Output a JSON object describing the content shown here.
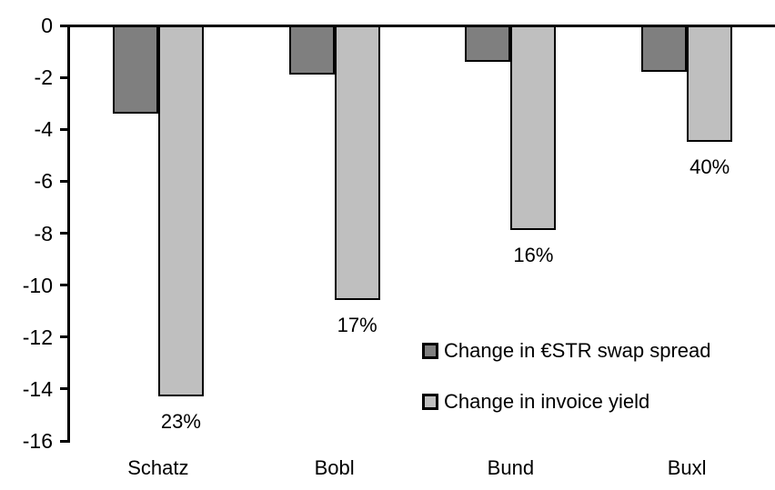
{
  "chart_data": {
    "type": "bar",
    "title": "",
    "xlabel": "",
    "ylabel": "",
    "categories": [
      "Schatz",
      "Bobl",
      "Bund",
      "Buxl"
    ],
    "series": [
      {
        "name": "Change in €STR swap spread",
        "color": "#7f7f7f",
        "values": [
          -3.3,
          -1.8,
          -1.3,
          -1.7
        ]
      },
      {
        "name": "Change in invoice yield",
        "color": "#bfbfbf",
        "values": [
          -14.2,
          -10.5,
          -7.8,
          -4.4
        ],
        "point_labels": [
          "23%",
          "17%",
          "16%",
          "40%"
        ]
      }
    ],
    "ylim": [
      -16,
      0
    ],
    "yticks": [
      0,
      -2,
      -4,
      -6,
      -8,
      -10,
      -12,
      -14,
      -16
    ],
    "grid": false,
    "legend_position": "inside-right-middle",
    "bar_outline_color": "#000000",
    "axis_color": "#000000",
    "background_color": "#ffffff"
  }
}
